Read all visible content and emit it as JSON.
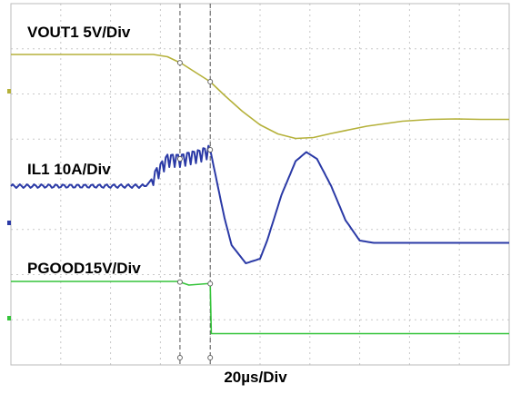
{
  "chart_data": {
    "type": "line",
    "title": "",
    "xlabel": "20µs/Div",
    "ylabel": "",
    "time_per_div_us": 20,
    "grid": true,
    "grid_divisions": {
      "horizontal": 10,
      "vertical": 8
    },
    "cursors_x_us": [
      47.5,
      56.0
    ],
    "series": [
      {
        "name": "VOUT1 5V/Div",
        "color": "#b5b13a",
        "volts_per_div": 5,
        "x_us": [
          0,
          40,
          44,
          48,
          52,
          56,
          60,
          65,
          70,
          75,
          80,
          85,
          90,
          100,
          110,
          118,
          125,
          132,
          140
        ],
        "y_div": [
          0,
          0,
          -0.05,
          -0.2,
          -0.4,
          -0.6,
          -0.9,
          -1.25,
          -1.55,
          -1.75,
          -1.85,
          -1.83,
          -1.74,
          -1.58,
          -1.47,
          -1.43,
          -1.42,
          -1.43,
          -1.43
        ]
      },
      {
        "name": "IL1 10A/Div",
        "color": "#2b3aa6",
        "amps_per_div": 10,
        "x_us": [
          0,
          38,
          44,
          48,
          50,
          53,
          56,
          60,
          62,
          66,
          70,
          72,
          76,
          80,
          83,
          86,
          90,
          94,
          98,
          102,
          106,
          140
        ],
        "y_div": [
          0,
          0,
          0.6,
          0.6,
          0.65,
          0.7,
          0.8,
          -0.7,
          -1.3,
          -1.7,
          -1.6,
          -1.2,
          -0.2,
          0.55,
          0.75,
          0.6,
          0.0,
          -0.75,
          -1.2,
          -1.25,
          -1.25,
          -1.25
        ]
      },
      {
        "name": "PGOOD15V/Div",
        "color": "#35c43a",
        "volts_per_div": 5,
        "x_us": [
          0,
          47,
          50,
          55,
          56,
          56.3,
          140
        ],
        "y_div": [
          0,
          0,
          -0.08,
          -0.05,
          -0.05,
          -1.15,
          -1.15
        ]
      }
    ]
  },
  "labels": {
    "vout": "VOUT1 5V/Div",
    "il": "IL1 10A/Div",
    "pgood": "PGOOD15V/Div",
    "time": "20µs/Div"
  },
  "colors": {
    "vout": "#b5b13a",
    "il": "#2b3aa6",
    "pgood": "#35c43a",
    "grid": "#c8c8c8",
    "cursor": "#555555"
  }
}
